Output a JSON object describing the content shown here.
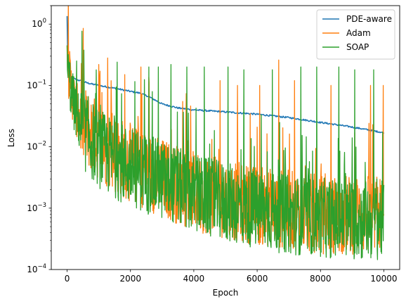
{
  "chart_data": {
    "type": "line",
    "title": "",
    "xlabel": "Epoch",
    "ylabel": "Loss",
    "xlim": [
      -500,
      10500
    ],
    "ylim": [
      0.0001,
      2.0
    ],
    "yscale": "log",
    "grid": false,
    "legend_position": "top-right",
    "x_ticks": [
      0,
      2000,
      4000,
      6000,
      8000,
      10000
    ],
    "x_tick_labels": [
      "0",
      "2000",
      "4000",
      "6000",
      "8000",
      "10000"
    ],
    "y_ticks": [
      0.0001,
      0.001,
      0.01,
      0.1,
      1
    ],
    "y_tick_labels": [
      {
        "base": "10",
        "exp": "−4"
      },
      {
        "base": "10",
        "exp": "−3"
      },
      {
        "base": "10",
        "exp": "−2"
      },
      {
        "base": "10",
        "exp": "−1"
      },
      {
        "base": "10",
        "exp": "0"
      }
    ],
    "series": [
      {
        "name": "PDE-aware",
        "color": "#1f77b4",
        "x": [
          0,
          10,
          30,
          60,
          100,
          200,
          300,
          500,
          800,
          1000,
          1500,
          2000,
          2300,
          2600,
          3000,
          3500,
          4000,
          5000,
          6000,
          7000,
          8000,
          9000,
          10000
        ],
        "y": [
          1.35,
          0.4,
          0.2,
          0.16,
          0.145,
          0.13,
          0.125,
          0.115,
          0.105,
          0.1,
          0.09,
          0.08,
          0.075,
          0.065,
          0.05,
          0.043,
          0.04,
          0.037,
          0.034,
          0.03,
          0.025,
          0.021,
          0.017
        ]
      },
      {
        "name": "Adam",
        "color": "#ff7f0e",
        "x": [
          0,
          10,
          50,
          150,
          300,
          500,
          1000,
          1500,
          2000,
          3000,
          4000,
          5000,
          6000,
          7000,
          8000,
          9000,
          10000
        ],
        "y": [
          0.45,
          0.2,
          0.12,
          0.06,
          0.03,
          0.015,
          0.008,
          0.005,
          0.0035,
          0.002,
          0.0012,
          0.0009,
          0.0007,
          0.0006,
          0.0005,
          0.0005,
          0.0005
        ],
        "spikes": [
          {
            "x": 1000,
            "y": 0.22
          },
          {
            "x": 1280,
            "y": 0.28
          },
          {
            "x": 2330,
            "y": 0.2
          },
          {
            "x": 4830,
            "y": 0.12
          },
          {
            "x": 5380,
            "y": 0.1
          },
          {
            "x": 6080,
            "y": 0.1
          },
          {
            "x": 6680,
            "y": 0.26
          },
          {
            "x": 7180,
            "y": 0.12
          },
          {
            "x": 8330,
            "y": 0.1
          },
          {
            "x": 9580,
            "y": 0.1
          },
          {
            "x": 9980,
            "y": 0.1
          }
        ]
      },
      {
        "name": "SOAP",
        "color": "#2ca02c",
        "x": [
          0,
          10,
          50,
          150,
          300,
          500,
          1000,
          1500,
          2000,
          3000,
          4000,
          5000,
          6000,
          7000,
          8000,
          9000,
          10000
        ],
        "y": [
          0.45,
          0.18,
          0.1,
          0.05,
          0.025,
          0.012,
          0.006,
          0.004,
          0.003,
          0.0018,
          0.0011,
          0.0008,
          0.0006,
          0.0005,
          0.00045,
          0.0004,
          0.0004
        ],
        "spikes": [
          {
            "x": 300,
            "y": 0.25
          },
          {
            "x": 1580,
            "y": 0.24
          },
          {
            "x": 2580,
            "y": 0.2
          },
          {
            "x": 2880,
            "y": 0.2
          },
          {
            "x": 3280,
            "y": 0.22
          },
          {
            "x": 3780,
            "y": 0.2
          },
          {
            "x": 4330,
            "y": 0.2
          },
          {
            "x": 5080,
            "y": 0.2
          },
          {
            "x": 5580,
            "y": 0.18
          },
          {
            "x": 6480,
            "y": 0.18
          },
          {
            "x": 7380,
            "y": 0.2
          },
          {
            "x": 7880,
            "y": 0.2
          },
          {
            "x": 8580,
            "y": 0.2
          },
          {
            "x": 9080,
            "y": 0.18
          },
          {
            "x": 9680,
            "y": 0.18
          }
        ]
      }
    ]
  }
}
